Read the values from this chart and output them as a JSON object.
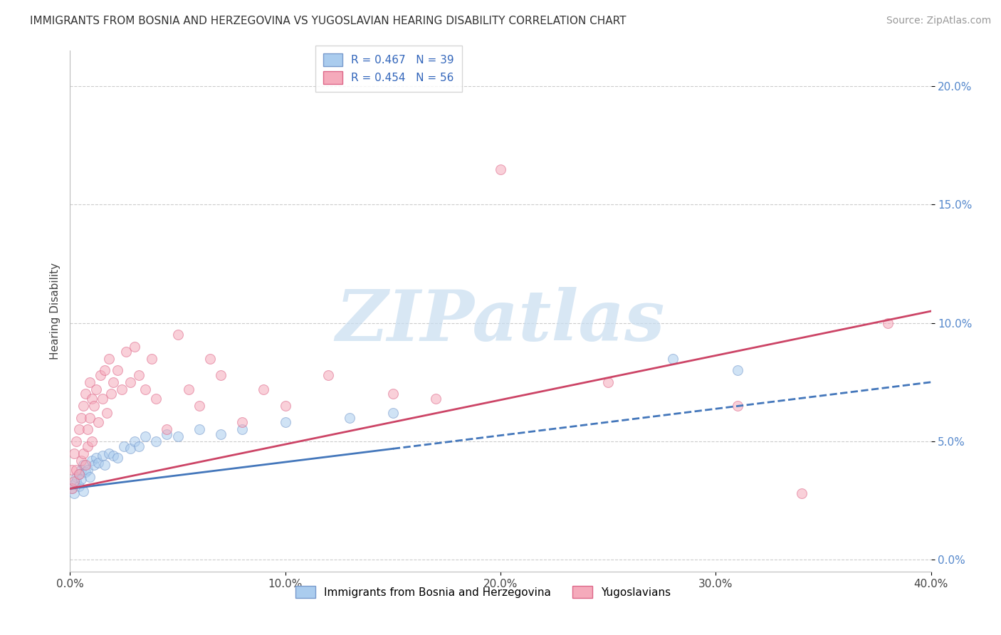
{
  "title": "IMMIGRANTS FROM BOSNIA AND HERZEGOVINA VS YUGOSLAVIAN HEARING DISABILITY CORRELATION CHART",
  "source": "Source: ZipAtlas.com",
  "ylabel": "Hearing Disability",
  "xlim": [
    0.0,
    0.4
  ],
  "ylim": [
    -0.005,
    0.215
  ],
  "xticks": [
    0.0,
    0.1,
    0.2,
    0.3,
    0.4
  ],
  "xtick_labels": [
    "0.0%",
    "10.0%",
    "20.0%",
    "30.0%",
    "40.0%"
  ],
  "yticks": [
    0.0,
    0.05,
    0.1,
    0.15,
    0.2
  ],
  "ytick_labels": [
    "0.0%",
    "5.0%",
    "10.0%",
    "15.0%",
    "20.0%"
  ],
  "series": [
    {
      "name": "Immigrants from Bosnia and Herzegovina",
      "R": 0.467,
      "N": 39,
      "color": "#aaccee",
      "edge_color": "#7799cc",
      "trend_color": "#4477bb",
      "trend_dashed_from": 0.15,
      "x": [
        0.001,
        0.002,
        0.002,
        0.003,
        0.003,
        0.004,
        0.004,
        0.005,
        0.005,
        0.006,
        0.006,
        0.007,
        0.008,
        0.009,
        0.01,
        0.011,
        0.012,
        0.013,
        0.015,
        0.016,
        0.018,
        0.02,
        0.022,
        0.025,
        0.028,
        0.03,
        0.032,
        0.035,
        0.04,
        0.045,
        0.05,
        0.06,
        0.07,
        0.08,
        0.1,
        0.13,
        0.15,
        0.28,
        0.31
      ],
      "y": [
        0.03,
        0.032,
        0.028,
        0.035,
        0.033,
        0.036,
        0.031,
        0.038,
        0.034,
        0.04,
        0.029,
        0.037,
        0.038,
        0.035,
        0.042,
        0.04,
        0.043,
        0.041,
        0.044,
        0.04,
        0.045,
        0.044,
        0.043,
        0.048,
        0.047,
        0.05,
        0.048,
        0.052,
        0.05,
        0.053,
        0.052,
        0.055,
        0.053,
        0.055,
        0.058,
        0.06,
        0.062,
        0.085,
        0.08
      ]
    },
    {
      "name": "Yugoslavians",
      "R": 0.454,
      "N": 56,
      "color": "#f5aabb",
      "edge_color": "#dd6688",
      "trend_color": "#cc4466",
      "trend_dashed_from": null,
      "x": [
        0.001,
        0.001,
        0.002,
        0.002,
        0.003,
        0.003,
        0.004,
        0.004,
        0.005,
        0.005,
        0.006,
        0.006,
        0.007,
        0.007,
        0.008,
        0.008,
        0.009,
        0.009,
        0.01,
        0.01,
        0.011,
        0.012,
        0.013,
        0.014,
        0.015,
        0.016,
        0.017,
        0.018,
        0.019,
        0.02,
        0.022,
        0.024,
        0.026,
        0.028,
        0.03,
        0.032,
        0.035,
        0.038,
        0.04,
        0.045,
        0.05,
        0.055,
        0.06,
        0.065,
        0.07,
        0.08,
        0.09,
        0.1,
        0.12,
        0.15,
        0.17,
        0.2,
        0.25,
        0.31,
        0.34,
        0.38
      ],
      "y": [
        0.03,
        0.038,
        0.033,
        0.045,
        0.038,
        0.05,
        0.036,
        0.055,
        0.042,
        0.06,
        0.045,
        0.065,
        0.04,
        0.07,
        0.055,
        0.048,
        0.06,
        0.075,
        0.05,
        0.068,
        0.065,
        0.072,
        0.058,
        0.078,
        0.068,
        0.08,
        0.062,
        0.085,
        0.07,
        0.075,
        0.08,
        0.072,
        0.088,
        0.075,
        0.09,
        0.078,
        0.072,
        0.085,
        0.068,
        0.055,
        0.095,
        0.072,
        0.065,
        0.085,
        0.078,
        0.058,
        0.072,
        0.065,
        0.078,
        0.07,
        0.068,
        0.165,
        0.075,
        0.065,
        0.028,
        0.1
      ]
    }
  ],
  "trend_lines": [
    {
      "x0": 0.0,
      "y0": 0.03,
      "x1": 0.4,
      "y1": 0.075,
      "color": "#4477bb",
      "dashed_from": 0.15,
      "linewidth": 2.0
    },
    {
      "x0": 0.0,
      "y0": 0.03,
      "x1": 0.4,
      "y1": 0.105,
      "color": "#cc4466",
      "dashed_from": null,
      "linewidth": 2.0
    }
  ],
  "watermark_text": "ZIPatlas",
  "watermark_color": "#c8ddf0",
  "background_color": "#ffffff",
  "grid_color": "#cccccc",
  "title_fontsize": 11,
  "axis_label_fontsize": 11,
  "tick_fontsize": 11,
  "legend_fontsize": 11,
  "source_fontsize": 10,
  "marker_size": 100,
  "marker_alpha": 0.55,
  "marker_linewidth": 0.8
}
